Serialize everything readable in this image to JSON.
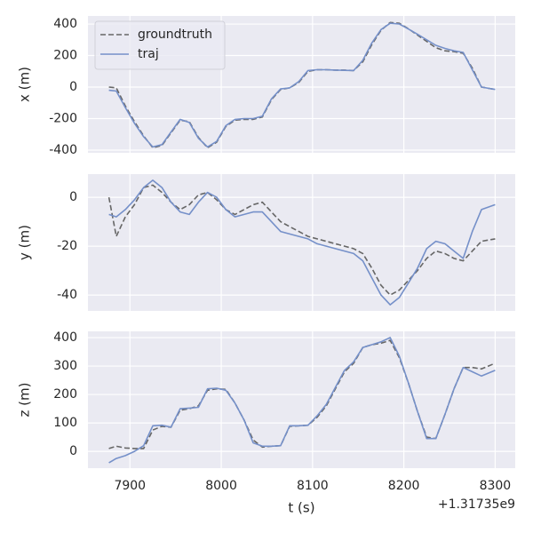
{
  "chart_data": [
    {
      "type": "line",
      "ylabel": "x (m)",
      "legend": "upper left",
      "grid": true,
      "x": [
        7877,
        7885,
        7895,
        7905,
        7915,
        7925,
        7935,
        7945,
        7955,
        7965,
        7975,
        7985,
        7995,
        8005,
        8015,
        8025,
        8035,
        8045,
        8055,
        8065,
        8075,
        8085,
        8095,
        8105,
        8115,
        8125,
        8135,
        8145,
        8155,
        8165,
        8175,
        8185,
        8195,
        8205,
        8215,
        8225,
        8235,
        8245,
        8255,
        8265,
        8275,
        8285,
        8300
      ],
      "xlim": [
        7854,
        8322
      ],
      "xticks": [
        7900,
        8000,
        8100,
        8200,
        8300
      ],
      "ylim": [
        -417,
        451
      ],
      "yticks": [
        -400,
        -200,
        0,
        200,
        400
      ],
      "series": [
        {
          "name": "groundtruth",
          "color": "#666666",
          "linestyle": "dashed",
          "values": [
            0,
            -5,
            -120,
            -220,
            -310,
            -385,
            -370,
            -290,
            -210,
            -220,
            -320,
            -385,
            -350,
            -250,
            -210,
            -205,
            -205,
            -190,
            -80,
            -15,
            -5,
            30,
            100,
            110,
            110,
            108,
            108,
            105,
            160,
            270,
            360,
            410,
            405,
            370,
            330,
            290,
            250,
            230,
            225,
            215,
            120,
            0,
            -15
          ]
        },
        {
          "name": "traj",
          "color": "#7590c9",
          "linestyle": "solid",
          "values": [
            -20,
            -25,
            -130,
            -230,
            -315,
            -380,
            -365,
            -285,
            -205,
            -225,
            -325,
            -380,
            -345,
            -245,
            -205,
            -200,
            -200,
            -185,
            -75,
            -12,
            -5,
            35,
            105,
            110,
            110,
            108,
            106,
            105,
            170,
            280,
            365,
            405,
            400,
            368,
            335,
            300,
            265,
            245,
            230,
            220,
            110,
            0,
            -15
          ]
        }
      ]
    },
    {
      "type": "line",
      "ylabel": "y (m)",
      "grid": true,
      "x": [
        7877,
        7885,
        7895,
        7905,
        7915,
        7925,
        7935,
        7945,
        7955,
        7965,
        7975,
        7985,
        7995,
        8005,
        8015,
        8025,
        8035,
        8045,
        8055,
        8065,
        8075,
        8085,
        8095,
        8105,
        8115,
        8125,
        8135,
        8145,
        8155,
        8165,
        8175,
        8185,
        8195,
        8205,
        8215,
        8225,
        8235,
        8245,
        8255,
        8265,
        8275,
        8285,
        8300
      ],
      "xlim": [
        7854,
        8322
      ],
      "xticks": [
        7900,
        8000,
        8100,
        8200,
        8300
      ],
      "ylim": [
        -46.5,
        9.5
      ],
      "yticks": [
        -40,
        -20,
        0
      ],
      "series": [
        {
          "color": "#666666",
          "linestyle": "dashed",
          "values": [
            0,
            -16,
            -8,
            -3,
            4,
            5,
            2,
            -2,
            -5,
            -3,
            1,
            2,
            -1,
            -5,
            -7,
            -5,
            -3,
            -2,
            -6,
            -10,
            -12,
            -14,
            -16,
            -17,
            -18,
            -19,
            -20,
            -21,
            -23,
            -29,
            -36,
            -40,
            -38,
            -34,
            -30,
            -25,
            -22,
            -23,
            -25,
            -26,
            -22,
            -18,
            -17
          ]
        },
        {
          "color": "#7590c9",
          "linestyle": "solid",
          "values": [
            -7,
            -8,
            -5,
            -1,
            4,
            7,
            4,
            -2,
            -6,
            -7,
            -2,
            2,
            0,
            -5,
            -8,
            -7,
            -6,
            -6,
            -10,
            -14,
            -15,
            -16,
            -17,
            -19,
            -20,
            -21,
            -22,
            -23,
            -26,
            -33,
            -40,
            -44,
            -41,
            -35,
            -29,
            -21,
            -18,
            -19,
            -22,
            -25,
            -14,
            -5,
            -3
          ]
        }
      ]
    },
    {
      "type": "line",
      "ylabel": "z (m)",
      "xlabel": "t (s)",
      "x_offset_label": "+1.31735e9",
      "grid": true,
      "x": [
        7877,
        7885,
        7895,
        7905,
        7915,
        7925,
        7935,
        7945,
        7955,
        7965,
        7975,
        7985,
        7995,
        8005,
        8015,
        8025,
        8035,
        8045,
        8055,
        8065,
        8075,
        8085,
        8095,
        8105,
        8115,
        8125,
        8135,
        8145,
        8155,
        8165,
        8175,
        8185,
        8195,
        8205,
        8215,
        8225,
        8235,
        8245,
        8255,
        8265,
        8275,
        8285,
        8300
      ],
      "xlim": [
        7854,
        8322
      ],
      "xticks": [
        7900,
        8000,
        8100,
        8200,
        8300
      ],
      "ylim": [
        -59,
        422
      ],
      "yticks": [
        0,
        100,
        200,
        300,
        400
      ],
      "series": [
        {
          "color": "#666666",
          "linestyle": "dashed",
          "values": [
            10,
            18,
            12,
            10,
            10,
            75,
            88,
            85,
            145,
            150,
            160,
            215,
            220,
            218,
            170,
            110,
            40,
            15,
            18,
            20,
            88,
            90,
            92,
            120,
            160,
            220,
            280,
            310,
            365,
            375,
            380,
            390,
            330,
            240,
            140,
            50,
            45,
            130,
            220,
            295,
            295,
            290,
            310
          ]
        },
        {
          "color": "#7590c9",
          "linestyle": "solid",
          "values": [
            -40,
            -25,
            -15,
            0,
            20,
            90,
            92,
            85,
            150,
            152,
            155,
            220,
            222,
            215,
            170,
            110,
            30,
            18,
            18,
            20,
            90,
            90,
            92,
            125,
            165,
            225,
            285,
            315,
            365,
            375,
            385,
            400,
            335,
            240,
            140,
            45,
            45,
            130,
            220,
            295,
            280,
            265,
            285
          ]
        }
      ]
    }
  ]
}
